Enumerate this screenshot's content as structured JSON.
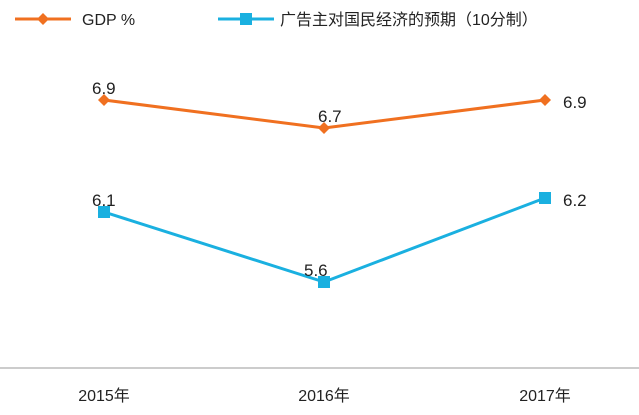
{
  "chart_data": {
    "type": "line",
    "categories": [
      "2015年",
      "2016年",
      "2017年"
    ],
    "series": [
      {
        "name": "GDP %",
        "values": [
          6.9,
          6.7,
          6.9
        ],
        "color": "#F07020",
        "marker": "diamond",
        "labels": [
          "6.9",
          "6.7",
          "6.9"
        ]
      },
      {
        "name": "广告主对国民经济的预期（10分制）",
        "values": [
          6.1,
          5.6,
          6.2
        ],
        "color": "#1AB0E0",
        "marker": "square",
        "labels": [
          "6.1",
          "5.6",
          "6.2"
        ]
      }
    ],
    "legend_position": "top",
    "grid": false,
    "axis_line_color": "#999999",
    "title": "",
    "xlabel": "",
    "ylabel": ""
  }
}
